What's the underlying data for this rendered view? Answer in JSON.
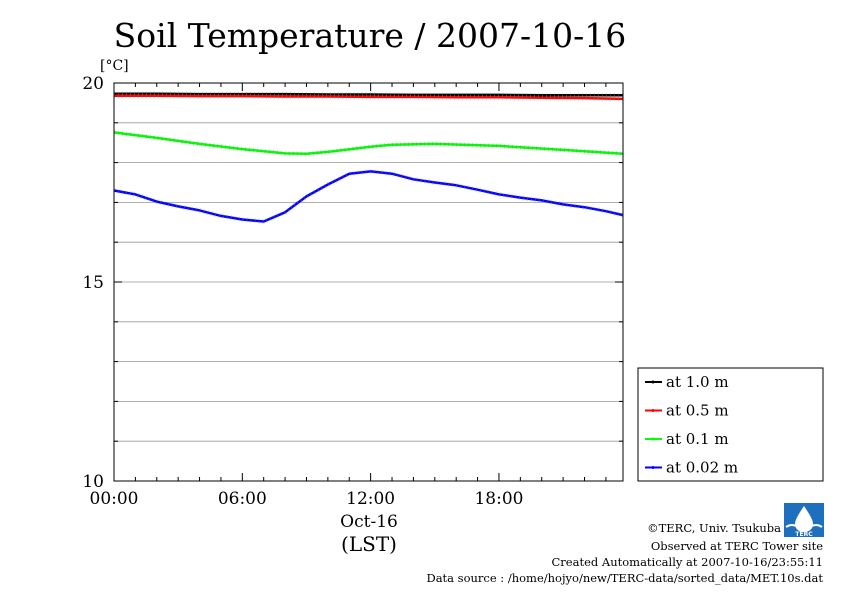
{
  "chart_data": {
    "type": "line",
    "title": "Soil Temperature / 2007-10-16",
    "ylabel": "[°C]",
    "xlabel": "(LST)",
    "x_date_label": "Oct-16",
    "ylim": [
      10,
      20
    ],
    "xlim": [
      0,
      23.8
    ],
    "y_ticks": [
      "10",
      "15",
      "20"
    ],
    "x_ticks": [
      {
        "value": 0,
        "label": "00:00"
      },
      {
        "value": 6,
        "label": "06:00"
      },
      {
        "value": 12,
        "label": "12:00"
      },
      {
        "value": 18,
        "label": "18:00"
      }
    ],
    "grid": true,
    "legend_position": "bottom-right",
    "series": [
      {
        "name": "at 1.0 m",
        "color": "#000000",
        "x": [
          0,
          2,
          4,
          6,
          8,
          10,
          12,
          14,
          16,
          18,
          20,
          22,
          23.8
        ],
        "y": [
          19.73,
          19.73,
          19.72,
          19.72,
          19.72,
          19.71,
          19.71,
          19.7,
          19.7,
          19.7,
          19.69,
          19.69,
          19.69
        ]
      },
      {
        "name": "at 0.5 m",
        "color": "#ff0000",
        "x": [
          0,
          2,
          4,
          6,
          8,
          10,
          12,
          14,
          16,
          18,
          20,
          22,
          23.8
        ],
        "y": [
          19.68,
          19.68,
          19.67,
          19.67,
          19.66,
          19.66,
          19.65,
          19.65,
          19.64,
          19.64,
          19.63,
          19.62,
          19.6
        ]
      },
      {
        "name": "at 0.1 m",
        "color": "#00ff00",
        "x": [
          0,
          2,
          4,
          6,
          8,
          9,
          10,
          12,
          13,
          15,
          18,
          21,
          23.8
        ],
        "y": [
          18.76,
          18.62,
          18.47,
          18.34,
          18.23,
          18.22,
          18.27,
          18.4,
          18.45,
          18.47,
          18.42,
          18.32,
          18.22
        ]
      },
      {
        "name": "at 0.02 m",
        "color": "#0000ff",
        "x": [
          0,
          1,
          2,
          3,
          4,
          5,
          6,
          7,
          8,
          9,
          10,
          11,
          12,
          13,
          14,
          15,
          16,
          17,
          18,
          19,
          20,
          21,
          22,
          23,
          23.8
        ],
        "y": [
          17.3,
          17.2,
          17.02,
          16.9,
          16.8,
          16.66,
          16.57,
          16.52,
          16.75,
          17.15,
          17.45,
          17.72,
          17.78,
          17.72,
          17.58,
          17.5,
          17.43,
          17.32,
          17.2,
          17.12,
          17.05,
          16.95,
          16.88,
          16.78,
          16.68
        ]
      }
    ]
  },
  "footer": {
    "copyright": "©TERC, Univ. Tsukuba",
    "site": "Observed at TERC Tower site",
    "created": "Created Automatically at 2007-10-16/23:55:11",
    "source": "Data source : /home/hojyo/new/TERC-data/sorted_data/MET.10s.dat",
    "logo_text": "TERC"
  }
}
